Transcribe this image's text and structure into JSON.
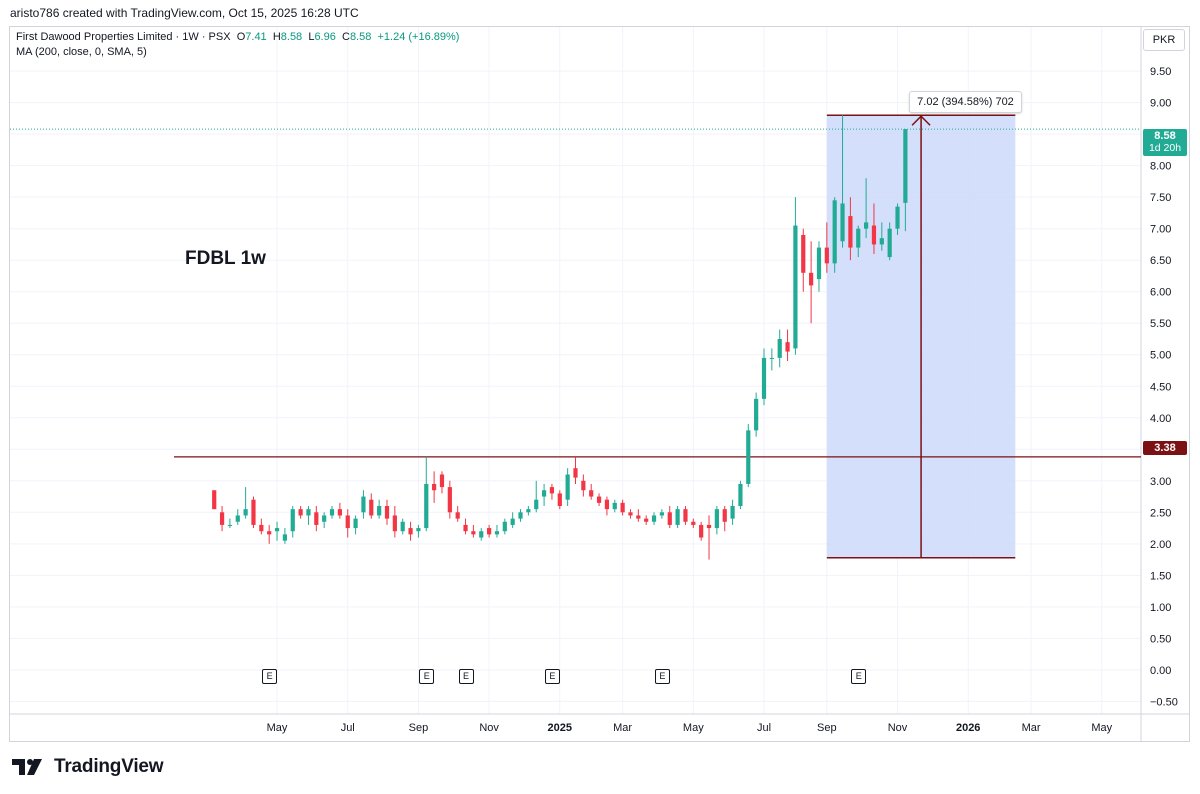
{
  "caption": "aristo786 created with TradingView.com, Oct 15, 2025 16:28 UTC",
  "legend": {
    "symbol": "First Dawood Properties Limited · 1W · PSX",
    "o_label": "O",
    "o_value": "7.41",
    "h_label": "H",
    "h_value": "8.58",
    "l_label": "L",
    "l_value": "6.96",
    "c_label": "C",
    "c_value": "8.58",
    "change": "+1.24 (+16.89%)",
    "indicator": "MA (200, close, 0, SMA, 5)"
  },
  "currency": "PKR",
  "chart_title": "FDBL 1w",
  "measure_label": "7.02 (394.58%) 702",
  "last_price": {
    "value": "8.58",
    "countdown": "1d 20h"
  },
  "level_price": "3.38",
  "logo_text": "TradingView",
  "colors": {
    "up": "#22ab94",
    "down": "#f23645",
    "level": "#7b1113",
    "range_fill": "#cfdcfb",
    "grid": "#f0f3fa"
  },
  "icons": {
    "earnings": "E",
    "logo": "tradingview-logo-icon"
  },
  "chart_data": {
    "type": "candlestick",
    "title": "FDBL 1w",
    "y_axis_labels": [
      "9.50",
      "9.00",
      "8.50",
      "8.00",
      "7.50",
      "7.00",
      "6.50",
      "6.00",
      "5.50",
      "5.00",
      "4.50",
      "4.00",
      "3.50",
      "3.00",
      "2.50",
      "2.00",
      "1.50",
      "1.00",
      "0.50",
      "0.00",
      "−0.50"
    ],
    "y_ticks": [
      9.5,
      9.0,
      8.5,
      8.0,
      7.5,
      7.0,
      6.5,
      6.0,
      5.5,
      5.0,
      4.5,
      4.0,
      3.5,
      3.0,
      2.5,
      2.0,
      1.5,
      1.0,
      0.5,
      0.0,
      -0.5
    ],
    "ylim": [
      -0.7,
      10.2
    ],
    "x_axis_labels": [
      {
        "label": "May",
        "week": 8,
        "bold": false
      },
      {
        "label": "Jul",
        "week": 17,
        "bold": false
      },
      {
        "label": "Sep",
        "week": 26,
        "bold": false
      },
      {
        "label": "Nov",
        "week": 35,
        "bold": false
      },
      {
        "label": "2025",
        "week": 44,
        "bold": true
      },
      {
        "label": "Mar",
        "week": 52,
        "bold": false
      },
      {
        "label": "May",
        "week": 61,
        "bold": false
      },
      {
        "label": "Jul",
        "week": 70,
        "bold": false
      },
      {
        "label": "Sep",
        "week": 78,
        "bold": false
      },
      {
        "label": "Nov",
        "week": 87,
        "bold": false
      },
      {
        "label": "2026",
        "week": 96,
        "bold": true
      },
      {
        "label": "Mar",
        "week": 104,
        "bold": false
      },
      {
        "label": "May",
        "week": 113,
        "bold": false
      }
    ],
    "x_range_weeks": [
      -26,
      118
    ],
    "candles": [
      [
        2.85,
        2.85,
        2.55,
        2.55
      ],
      [
        2.5,
        2.6,
        2.2,
        2.3
      ],
      [
        2.3,
        2.4,
        2.25,
        2.3
      ],
      [
        2.35,
        2.55,
        2.3,
        2.45
      ],
      [
        2.45,
        2.9,
        2.4,
        2.55
      ],
      [
        2.7,
        2.75,
        2.25,
        2.3
      ],
      [
        2.3,
        2.4,
        2.15,
        2.2
      ],
      [
        2.2,
        2.3,
        2.0,
        2.15
      ],
      [
        2.2,
        2.35,
        2.05,
        2.25
      ],
      [
        2.05,
        2.25,
        2.0,
        2.15
      ],
      [
        2.2,
        2.6,
        2.1,
        2.55
      ],
      [
        2.55,
        2.6,
        2.4,
        2.45
      ],
      [
        2.45,
        2.6,
        2.3,
        2.55
      ],
      [
        2.5,
        2.6,
        2.2,
        2.3
      ],
      [
        2.35,
        2.5,
        2.25,
        2.45
      ],
      [
        2.45,
        2.6,
        2.4,
        2.55
      ],
      [
        2.55,
        2.65,
        2.4,
        2.45
      ],
      [
        2.45,
        2.55,
        2.1,
        2.25
      ],
      [
        2.25,
        2.45,
        2.15,
        2.4
      ],
      [
        2.5,
        2.85,
        2.4,
        2.75
      ],
      [
        2.7,
        2.8,
        2.4,
        2.45
      ],
      [
        2.45,
        2.7,
        2.4,
        2.6
      ],
      [
        2.6,
        2.7,
        2.3,
        2.4
      ],
      [
        2.45,
        2.6,
        2.1,
        2.2
      ],
      [
        2.2,
        2.4,
        2.15,
        2.35
      ],
      [
        2.25,
        2.35,
        2.05,
        2.15
      ],
      [
        2.2,
        2.3,
        2.1,
        2.25
      ],
      [
        2.25,
        3.38,
        2.2,
        2.95
      ],
      [
        2.95,
        3.15,
        2.65,
        2.85
      ],
      [
        3.1,
        3.15,
        2.8,
        2.9
      ],
      [
        2.9,
        3.0,
        2.4,
        2.5
      ],
      [
        2.5,
        2.6,
        2.35,
        2.4
      ],
      [
        2.3,
        2.4,
        2.15,
        2.2
      ],
      [
        2.2,
        2.3,
        2.1,
        2.15
      ],
      [
        2.1,
        2.25,
        2.05,
        2.2
      ],
      [
        2.25,
        2.3,
        2.1,
        2.15
      ],
      [
        2.15,
        2.3,
        2.1,
        2.2
      ],
      [
        2.2,
        2.4,
        2.15,
        2.35
      ],
      [
        2.3,
        2.5,
        2.25,
        2.4
      ],
      [
        2.4,
        2.55,
        2.35,
        2.5
      ],
      [
        2.5,
        2.6,
        2.45,
        2.55
      ],
      [
        2.55,
        3.0,
        2.5,
        2.7
      ],
      [
        2.75,
        2.95,
        2.6,
        2.85
      ],
      [
        2.9,
        2.95,
        2.7,
        2.8
      ],
      [
        2.8,
        2.85,
        2.55,
        2.6
      ],
      [
        2.7,
        3.2,
        2.6,
        3.1
      ],
      [
        3.2,
        3.38,
        2.95,
        3.05
      ],
      [
        3.0,
        3.1,
        2.75,
        2.85
      ],
      [
        2.85,
        2.95,
        2.7,
        2.75
      ],
      [
        2.75,
        2.8,
        2.6,
        2.65
      ],
      [
        2.7,
        2.75,
        2.45,
        2.55
      ],
      [
        2.55,
        2.7,
        2.5,
        2.65
      ],
      [
        2.65,
        2.7,
        2.45,
        2.5
      ],
      [
        2.5,
        2.55,
        2.4,
        2.45
      ],
      [
        2.45,
        2.55,
        2.35,
        2.4
      ],
      [
        2.4,
        2.45,
        2.3,
        2.35
      ],
      [
        2.35,
        2.5,
        2.3,
        2.45
      ],
      [
        2.45,
        2.55,
        2.4,
        2.5
      ],
      [
        2.5,
        2.6,
        2.25,
        2.3
      ],
      [
        2.3,
        2.6,
        2.25,
        2.55
      ],
      [
        2.55,
        2.6,
        2.3,
        2.35
      ],
      [
        2.35,
        2.4,
        2.25,
        2.3
      ],
      [
        2.3,
        2.35,
        2.05,
        2.1
      ],
      [
        2.3,
        2.45,
        1.75,
        2.25
      ],
      [
        2.25,
        2.6,
        2.15,
        2.55
      ],
      [
        2.55,
        2.6,
        2.2,
        2.35
      ],
      [
        2.4,
        2.7,
        2.3,
        2.6
      ],
      [
        2.6,
        3.0,
        2.55,
        2.95
      ],
      [
        2.95,
        3.9,
        2.9,
        3.8
      ],
      [
        3.8,
        4.4,
        3.7,
        4.3
      ],
      [
        4.3,
        5.1,
        4.2,
        4.95
      ],
      [
        4.95,
        5.1,
        4.75,
        4.95
      ],
      [
        4.95,
        5.4,
        4.8,
        5.25
      ],
      [
        5.2,
        5.4,
        4.9,
        5.05
      ],
      [
        5.1,
        7.5,
        5.0,
        7.05
      ],
      [
        6.9,
        7.0,
        6.0,
        6.3
      ],
      [
        6.3,
        6.8,
        5.5,
        6.1
      ],
      [
        6.2,
        6.8,
        6.0,
        6.7
      ],
      [
        6.7,
        7.1,
        6.3,
        6.45
      ],
      [
        6.45,
        7.5,
        6.3,
        7.45
      ],
      [
        6.8,
        8.8,
        6.7,
        7.4
      ],
      [
        7.2,
        7.5,
        6.5,
        6.7
      ],
      [
        6.7,
        7.05,
        6.55,
        7.0
      ],
      [
        7.0,
        7.8,
        6.85,
        7.1
      ],
      [
        7.05,
        7.4,
        6.6,
        6.75
      ],
      [
        6.75,
        7.1,
        6.65,
        6.85
      ],
      [
        6.55,
        7.1,
        6.5,
        7.0
      ],
      [
        7.0,
        7.4,
        6.9,
        7.35
      ],
      [
        7.41,
        8.58,
        6.96,
        8.58
      ]
    ],
    "horizontal_level": 3.38,
    "price_range": {
      "from": 1.78,
      "to": 8.8,
      "week_start": 78,
      "week_end": 102,
      "label": "7.02 (394.58%) 702"
    },
    "earnings_weeks": [
      7,
      27,
      32,
      43,
      57,
      82
    ],
    "earnings_label": "E"
  }
}
